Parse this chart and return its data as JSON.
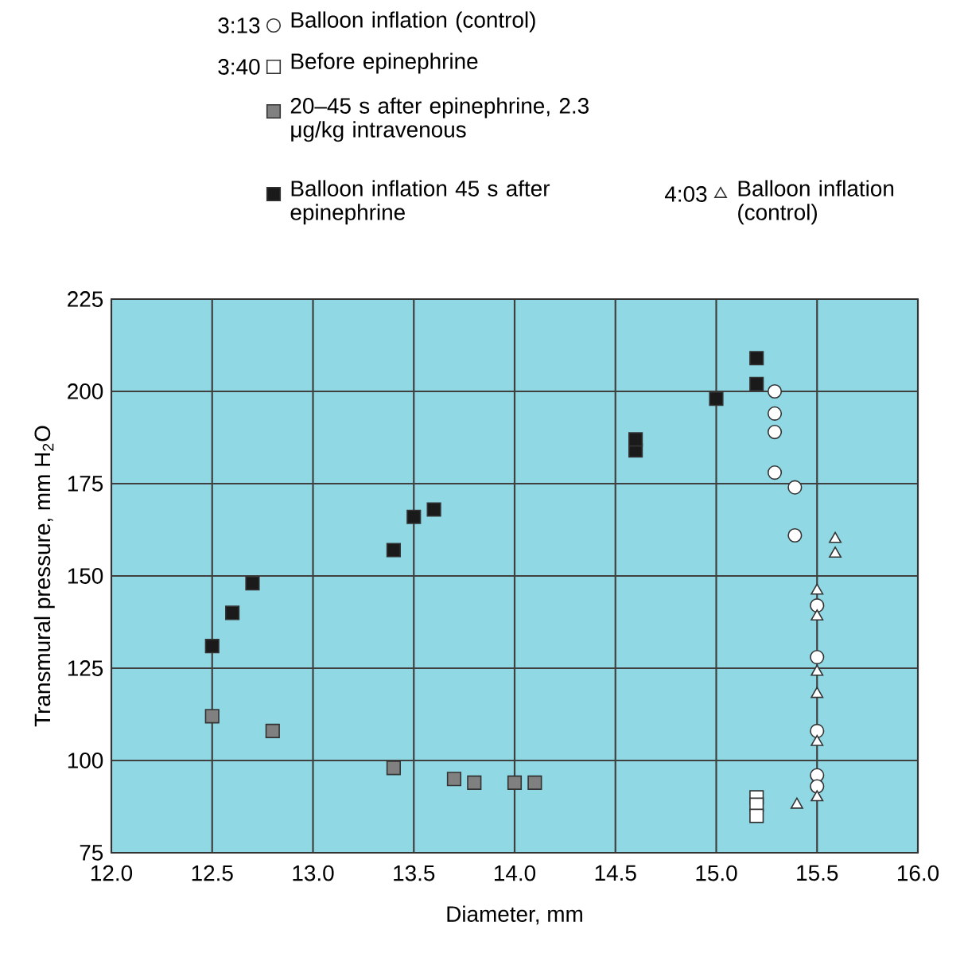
{
  "chart_data": {
    "type": "scatter",
    "xlabel": "Diameter, mm",
    "ylabel": "Transmural pressure, mm H$_{2}$O",
    "annotations": [
      "3:13",
      "3:40",
      "4:03"
    ],
    "xlim": [
      12,
      16
    ],
    "ylim": [
      75,
      225
    ],
    "xticks": [
      {
        "value": 12,
        "label": "12.0"
      },
      {
        "value": 12.5,
        "label": "12.5"
      },
      {
        "value": 13,
        "label": "13.0"
      },
      {
        "value": 13.5,
        "label": "13.5"
      },
      {
        "value": 14,
        "label": "14.0"
      },
      {
        "value": 14.5,
        "label": "14.5"
      },
      {
        "value": 15,
        "label": "15.0"
      },
      {
        "value": 15.5,
        "label": "15.5"
      },
      {
        "value": 16,
        "label": "16.0"
      }
    ],
    "yticks": [
      75,
      100,
      125,
      150,
      175,
      200,
      225
    ],
    "grid": true,
    "legend": "top",
    "series": [
      {
        "name": "Balloon inflation (control)",
        "color": "#ffffff",
        "marker": "circle",
        "x": [
          15.29,
          15.29,
          15.29,
          15.29,
          15.39,
          15.39,
          15.5,
          15.5,
          15.5,
          15.5,
          15.5
        ],
        "values": [
          200,
          194,
          189,
          178,
          174,
          161,
          142,
          128,
          108,
          96,
          93
        ]
      },
      {
        "name": "Before epinephrine",
        "color": "#ffffff",
        "marker": "square",
        "x": [
          15.2,
          15.2,
          15.2
        ],
        "values": [
          90,
          88,
          85
        ]
      },
      {
        "name": "20–45 s after epinephrine, 2.3 μg/kg intravenous",
        "color": "#808080",
        "marker": "square",
        "x": [
          12.5,
          12.8,
          13.4,
          13.7,
          13.8,
          14.0,
          14.1
        ],
        "values": [
          112,
          108,
          98,
          95,
          94,
          94,
          94
        ]
      },
      {
        "name": "Balloon inflation 45 s after epinephrine",
        "color": "#1a1a1a",
        "marker": "square",
        "x": [
          12.5,
          12.6,
          12.7,
          13.4,
          13.5,
          13.6,
          14.6,
          14.6,
          15.0,
          15.2,
          15.2
        ],
        "values": [
          131,
          140,
          148,
          157,
          166,
          168,
          184,
          187,
          198,
          202,
          209
        ]
      },
      {
        "name": "Balloon inflation (control)",
        "color": "#ffffff",
        "marker": "triangle",
        "x": [
          15.59,
          15.59,
          15.5,
          15.5,
          15.5,
          15.5,
          15.5,
          15.5,
          15.4
        ],
        "values": [
          160,
          156,
          146,
          139,
          124,
          118,
          105,
          90,
          88
        ]
      }
    ]
  }
}
